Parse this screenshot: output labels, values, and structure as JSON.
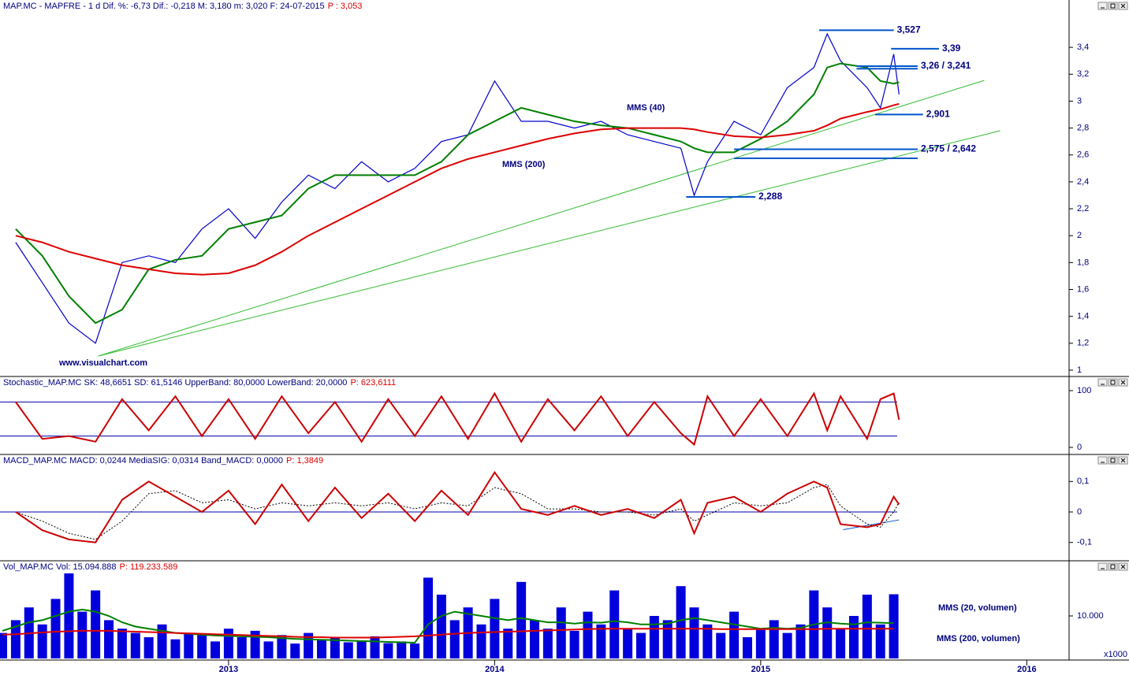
{
  "chart_data": [
    {
      "type": "line",
      "title": "MAP.MC - MAPFRE - 1 d Dif. %: -6,73 Dif.: -0,218 M: 3,180 m: 3,020 F: 24-07-2015",
      "price_label": "P : 3,053",
      "watermark": "www.visualchart.com",
      "xlim": [
        2012.141,
        2016.159
      ],
      "ylim": [
        0.953,
        3.67
      ],
      "yticks": [
        1,
        {
          "value": 1.2,
          "label": "1,2"
        },
        {
          "value": 1.4,
          "label": "1,4"
        },
        {
          "value": 1.6,
          "label": "1,6"
        },
        {
          "value": 1.8,
          "label": "1,8"
        },
        2,
        {
          "value": 2.2,
          "label": "2,2"
        },
        {
          "value": 2.4,
          "label": "2,4"
        },
        {
          "value": 2.6,
          "label": "2,6"
        },
        {
          "value": 2.8,
          "label": "2,8"
        },
        3,
        {
          "value": 3.2,
          "label": "3,2"
        },
        {
          "value": 3.4,
          "label": "3,4"
        }
      ],
      "x": [
        2012.2,
        2012.3,
        2012.4,
        2012.5,
        2012.6,
        2012.7,
        2012.8,
        2012.9,
        2013.0,
        2013.1,
        2013.2,
        2013.3,
        2013.4,
        2013.5,
        2013.6,
        2013.7,
        2013.8,
        2013.9,
        2014.0,
        2014.1,
        2014.2,
        2014.3,
        2014.4,
        2014.5,
        2014.6,
        2014.7,
        2014.75,
        2014.8,
        2014.9,
        2015.0,
        2015.1,
        2015.2,
        2015.25,
        2015.3,
        2015.4,
        2015.45,
        2015.5,
        2015.52
      ],
      "series": [
        {
          "color": "#0000cc",
          "values": [
            1.95,
            1.65,
            1.35,
            1.2,
            1.8,
            1.85,
            1.8,
            2.05,
            2.2,
            1.98,
            2.25,
            2.45,
            2.35,
            2.55,
            2.4,
            2.5,
            2.7,
            2.75,
            3.15,
            2.85,
            2.85,
            2.8,
            2.85,
            2.75,
            2.7,
            2.65,
            2.3,
            2.55,
            2.85,
            2.75,
            3.1,
            3.25,
            3.5,
            3.3,
            3.1,
            2.95,
            3.35,
            3.05
          ]
        },
        {
          "name": "MMS (40)",
          "color": "#008000",
          "values": [
            2.05,
            1.85,
            1.55,
            1.35,
            1.45,
            1.75,
            1.82,
            1.85,
            2.05,
            2.1,
            2.15,
            2.35,
            2.45,
            2.45,
            2.45,
            2.45,
            2.55,
            2.75,
            2.85,
            2.95,
            2.9,
            2.85,
            2.82,
            2.8,
            2.75,
            2.7,
            2.65,
            2.62,
            2.62,
            2.72,
            2.85,
            3.05,
            3.25,
            3.28,
            3.25,
            3.15,
            3.13,
            3.14
          ]
        },
        {
          "name": "MMS (200)",
          "color": "#dd0000",
          "values": [
            2.0,
            1.95,
            1.88,
            1.83,
            1.78,
            1.75,
            1.72,
            1.71,
            1.72,
            1.78,
            1.88,
            2.0,
            2.1,
            2.2,
            2.3,
            2.4,
            2.5,
            2.57,
            2.62,
            2.67,
            2.72,
            2.76,
            2.79,
            2.8,
            2.8,
            2.8,
            2.79,
            2.77,
            2.74,
            2.73,
            2.75,
            2.78,
            2.82,
            2.87,
            2.92,
            2.94,
            2.97,
            2.98
          ]
        }
      ],
      "trendline_color": "#33bb33",
      "trendlines": [
        {
          "x": [
            2012.51,
            2015.84
          ],
          "values": [
            1.105,
            3.154
          ]
        },
        {
          "x": [
            2012.51,
            2015.9
          ],
          "values": [
            1.105,
            2.78
          ]
        }
      ],
      "level_color": "#0055cc",
      "level_label_color": "#dd0000",
      "levels": [
        {
          "label": "3,527",
          "values": [
            3.527
          ],
          "x": [
            2015.22,
            2015.5
          ]
        },
        {
          "label": "3,39",
          "values": [
            3.39
          ],
          "x": [
            2015.49,
            2015.67
          ]
        },
        {
          "label": "3,26 / 3,241",
          "values": [
            3.26,
            3.241
          ],
          "x": [
            2015.36,
            2015.59
          ]
        },
        {
          "label": "2,901",
          "values": [
            2.901
          ],
          "x": [
            2015.43,
            2015.61
          ]
        },
        {
          "label": "2,575 / 2,642",
          "values": [
            2.575,
            2.642
          ],
          "x": [
            2014.9,
            2015.59
          ]
        },
        {
          "label": "2,288",
          "values": [
            2.288
          ],
          "x": [
            2014.72,
            2014.98
          ]
        }
      ]
    },
    {
      "type": "line",
      "title": "Stochastic_MAP.MC SK: 48,6651 SD: 61,5146 UpperBand: 80,0000 LowerBand: 20,0000",
      "price_label": "P: 623,6111",
      "xlim": [
        2012.141,
        2016.159
      ],
      "ylim": [
        -9.7,
        108.3
      ],
      "yticks": [
        0,
        100
      ],
      "bands": [
        80,
        20
      ],
      "band_color": "#0000aa",
      "x": [
        2012.2,
        2012.3,
        2012.4,
        2012.5,
        2012.6,
        2012.7,
        2012.8,
        2012.9,
        2013.0,
        2013.1,
        2013.2,
        2013.3,
        2013.4,
        2013.5,
        2013.6,
        2013.7,
        2013.8,
        2013.9,
        2014.0,
        2014.1,
        2014.2,
        2014.3,
        2014.4,
        2014.5,
        2014.6,
        2014.7,
        2014.75,
        2014.8,
        2014.9,
        2015.0,
        2015.1,
        2015.2,
        2015.25,
        2015.3,
        2015.4,
        2015.45,
        2015.5,
        2015.52
      ],
      "series": [
        {
          "color": "#cc0000",
          "values": [
            80,
            15,
            20,
            10,
            85,
            30,
            90,
            20,
            85,
            15,
            90,
            25,
            80,
            10,
            85,
            20,
            90,
            15,
            95,
            10,
            85,
            30,
            90,
            20,
            80,
            25,
            5,
            90,
            20,
            85,
            20,
            95,
            30,
            90,
            15,
            85,
            95,
            48.6651
          ]
        }
      ]
    },
    {
      "type": "line",
      "title": "MACD_MAP.MC MACD: 0,0244 MediaSIG: 0,0314 Band_MACD: 0,0000",
      "price_label": "P: 1,3849",
      "xlim": [
        2012.141,
        2016.159
      ],
      "ylim": [
        -0.155,
        0.155
      ],
      "yticks": [
        {
          "value": 0.1,
          "label": "0,1"
        },
        0,
        {
          "value": -0.1,
          "label": "-0,1"
        }
      ],
      "bands": [
        0
      ],
      "band_color": "#0000aa",
      "x": [
        2012.2,
        2012.3,
        2012.4,
        2012.5,
        2012.6,
        2012.7,
        2012.8,
        2012.9,
        2013.0,
        2013.1,
        2013.2,
        2013.3,
        2013.4,
        2013.5,
        2013.6,
        2013.7,
        2013.8,
        2013.9,
        2014.0,
        2014.1,
        2014.2,
        2014.3,
        2014.4,
        2014.5,
        2014.6,
        2014.7,
        2014.75,
        2014.8,
        2014.9,
        2015.0,
        2015.1,
        2015.2,
        2015.25,
        2015.3,
        2015.4,
        2015.45,
        2015.5,
        2015.52
      ],
      "series": [
        {
          "color": "#000000",
          "dashed": true,
          "values": [
            0,
            -0.03,
            -0.07,
            -0.09,
            -0.03,
            0.06,
            0.07,
            0.03,
            0.04,
            0.01,
            0.03,
            0.02,
            0.03,
            0.02,
            0.03,
            0.01,
            0.03,
            0.02,
            0.08,
            0.06,
            0.01,
            0.01,
            0.0,
            0.0,
            -0.01,
            0.01,
            -0.03,
            -0.01,
            0.03,
            0.02,
            0.03,
            0.08,
            0.09,
            0.02,
            -0.04,
            -0.05,
            0.0,
            0.0314
          ]
        },
        {
          "color": "#cc0000",
          "values": [
            0,
            -0.06,
            -0.09,
            -0.1,
            0.04,
            0.1,
            0.05,
            0.0,
            0.07,
            -0.04,
            0.09,
            -0.03,
            0.08,
            -0.02,
            0.06,
            -0.03,
            0.07,
            -0.01,
            0.13,
            0.01,
            -0.01,
            0.02,
            -0.01,
            0.01,
            -0.02,
            0.04,
            -0.07,
            0.03,
            0.05,
            0.0,
            0.06,
            0.1,
            0.08,
            -0.04,
            -0.05,
            -0.04,
            0.05,
            0.0244
          ]
        }
      ],
      "trendline_color": "#0055cc",
      "trendlines": [
        {
          "x": [
            2015.31,
            2015.52
          ],
          "values": [
            -0.058,
            -0.026
          ]
        }
      ]
    },
    {
      "type": "bar",
      "title": "Vol_MAP.MC Vol: 15.094.888",
      "price_label": "P: 119.233.589",
      "unit_label": "x1000",
      "xlim": [
        2012.141,
        2016.159
      ],
      "ylim": [
        0,
        22963
      ],
      "yticks": [
        {
          "value": 10000,
          "label": "10.000"
        }
      ],
      "xticks": [
        2013,
        2014,
        2015,
        2016
      ],
      "x": [
        2012.15,
        2012.2,
        2012.25,
        2012.3,
        2012.35,
        2012.4,
        2012.45,
        2012.5,
        2012.55,
        2012.6,
        2012.65,
        2012.7,
        2012.75,
        2012.8,
        2012.85,
        2012.9,
        2012.95,
        2013,
        2013.05,
        2013.1,
        2013.15,
        2013.2,
        2013.25,
        2013.3,
        2013.35,
        2013.4,
        2013.45,
        2013.5,
        2013.55,
        2013.6,
        2013.65,
        2013.7,
        2013.75,
        2013.8,
        2013.85,
        2013.9,
        2013.95,
        2014,
        2014.05,
        2014.1,
        2014.15,
        2014.2,
        2014.25,
        2014.3,
        2014.35,
        2014.4,
        2014.45,
        2014.5,
        2014.55,
        2014.6,
        2014.65,
        2014.7,
        2014.75,
        2014.8,
        2014.85,
        2014.9,
        2014.95,
        2015,
        2015.05,
        2015.1,
        2015.15,
        2015.2,
        2015.25,
        2015.3,
        2015.35,
        2015.4,
        2015.45,
        2015.5
      ],
      "series": [
        {
          "type": "bar",
          "color": "#0000dd",
          "values": [
            6000,
            9000,
            12000,
            8000,
            14000,
            20000,
            11000,
            16000,
            9000,
            7000,
            6000,
            5000,
            8000,
            4500,
            6000,
            5500,
            4000,
            7000,
            5000,
            6500,
            4000,
            5500,
            3500,
            6000,
            4500,
            5000,
            3800,
            4200,
            5200,
            3600,
            4000,
            3500,
            19000,
            15000,
            9000,
            12000,
            8000,
            14000,
            7000,
            18000,
            9000,
            7000,
            12000,
            6500,
            11000,
            8000,
            16000,
            7000,
            6000,
            10000,
            9000,
            17000,
            12000,
            8000,
            6000,
            11000,
            5000,
            7000,
            9000,
            6000,
            8000,
            16000,
            12000,
            7000,
            10000,
            15000,
            8000,
            15094.888
          ]
        },
        {
          "type": "line",
          "name": "MMS (20, volumen)",
          "color": "#008000",
          "values": [
            6500,
            7500,
            8500,
            9000,
            10000,
            11000,
            11500,
            11000,
            10000,
            8500,
            7500,
            7000,
            6500,
            6000,
            5800,
            5600,
            5400,
            5300,
            5200,
            5100,
            5000,
            4800,
            4600,
            4500,
            4400,
            4300,
            4200,
            4100,
            4000,
            3900,
            3800,
            3700,
            8000,
            10000,
            11000,
            10500,
            10000,
            9500,
            9000,
            9500,
            9000,
            8500,
            8500,
            8200,
            8500,
            8400,
            8800,
            8500,
            8000,
            8000,
            8200,
            9000,
            9500,
            9000,
            8500,
            8000,
            7500,
            7000,
            7200,
            7000,
            7200,
            8000,
            8500,
            8200,
            8000,
            8500,
            8400,
            8300
          ]
        },
        {
          "type": "line",
          "name": "MMS (200, volumen)",
          "color": "#dd0000",
          "values": [
            5600,
            5700,
            5900,
            6100,
            6300,
            6400,
            6500,
            6500,
            6500,
            6400,
            6300,
            6200,
            6100,
            6000,
            5900,
            5800,
            5700,
            5600,
            5500,
            5400,
            5300,
            5200,
            5100,
            5000,
            5000,
            4900,
            4900,
            4900,
            4900,
            5000,
            5100,
            5200,
            5400,
            5600,
            5800,
            6000,
            6100,
            6200,
            6300,
            6400,
            6500,
            6600,
            6700,
            6800,
            6900,
            7000,
            7000,
            7000,
            7000,
            7000,
            7000,
            7000,
            7000,
            7000,
            6900,
            6900,
            6900,
            6900,
            6900,
            6900,
            6900,
            6900,
            7000,
            7000,
            7000,
            7000,
            7000,
            7000
          ]
        }
      ]
    }
  ]
}
